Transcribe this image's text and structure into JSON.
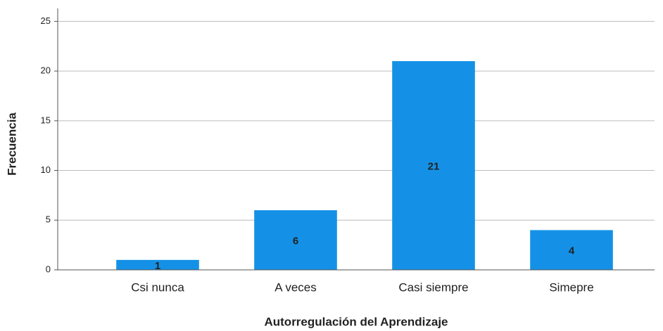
{
  "chart_data": {
    "type": "bar",
    "x_label": "Autorregulación del Aprendizaje",
    "y_label": "Frecuencia",
    "categories": [
      "Csi nunca",
      "A veces",
      "Casi siempre",
      "Simepre"
    ],
    "values": [
      1,
      6,
      21,
      4
    ],
    "color": "#1491e6",
    "ylim": [
      0,
      26.3
    ],
    "yticks": [
      0,
      5,
      10,
      15,
      20,
      25
    ],
    "grid": true,
    "data_labels": true
  }
}
